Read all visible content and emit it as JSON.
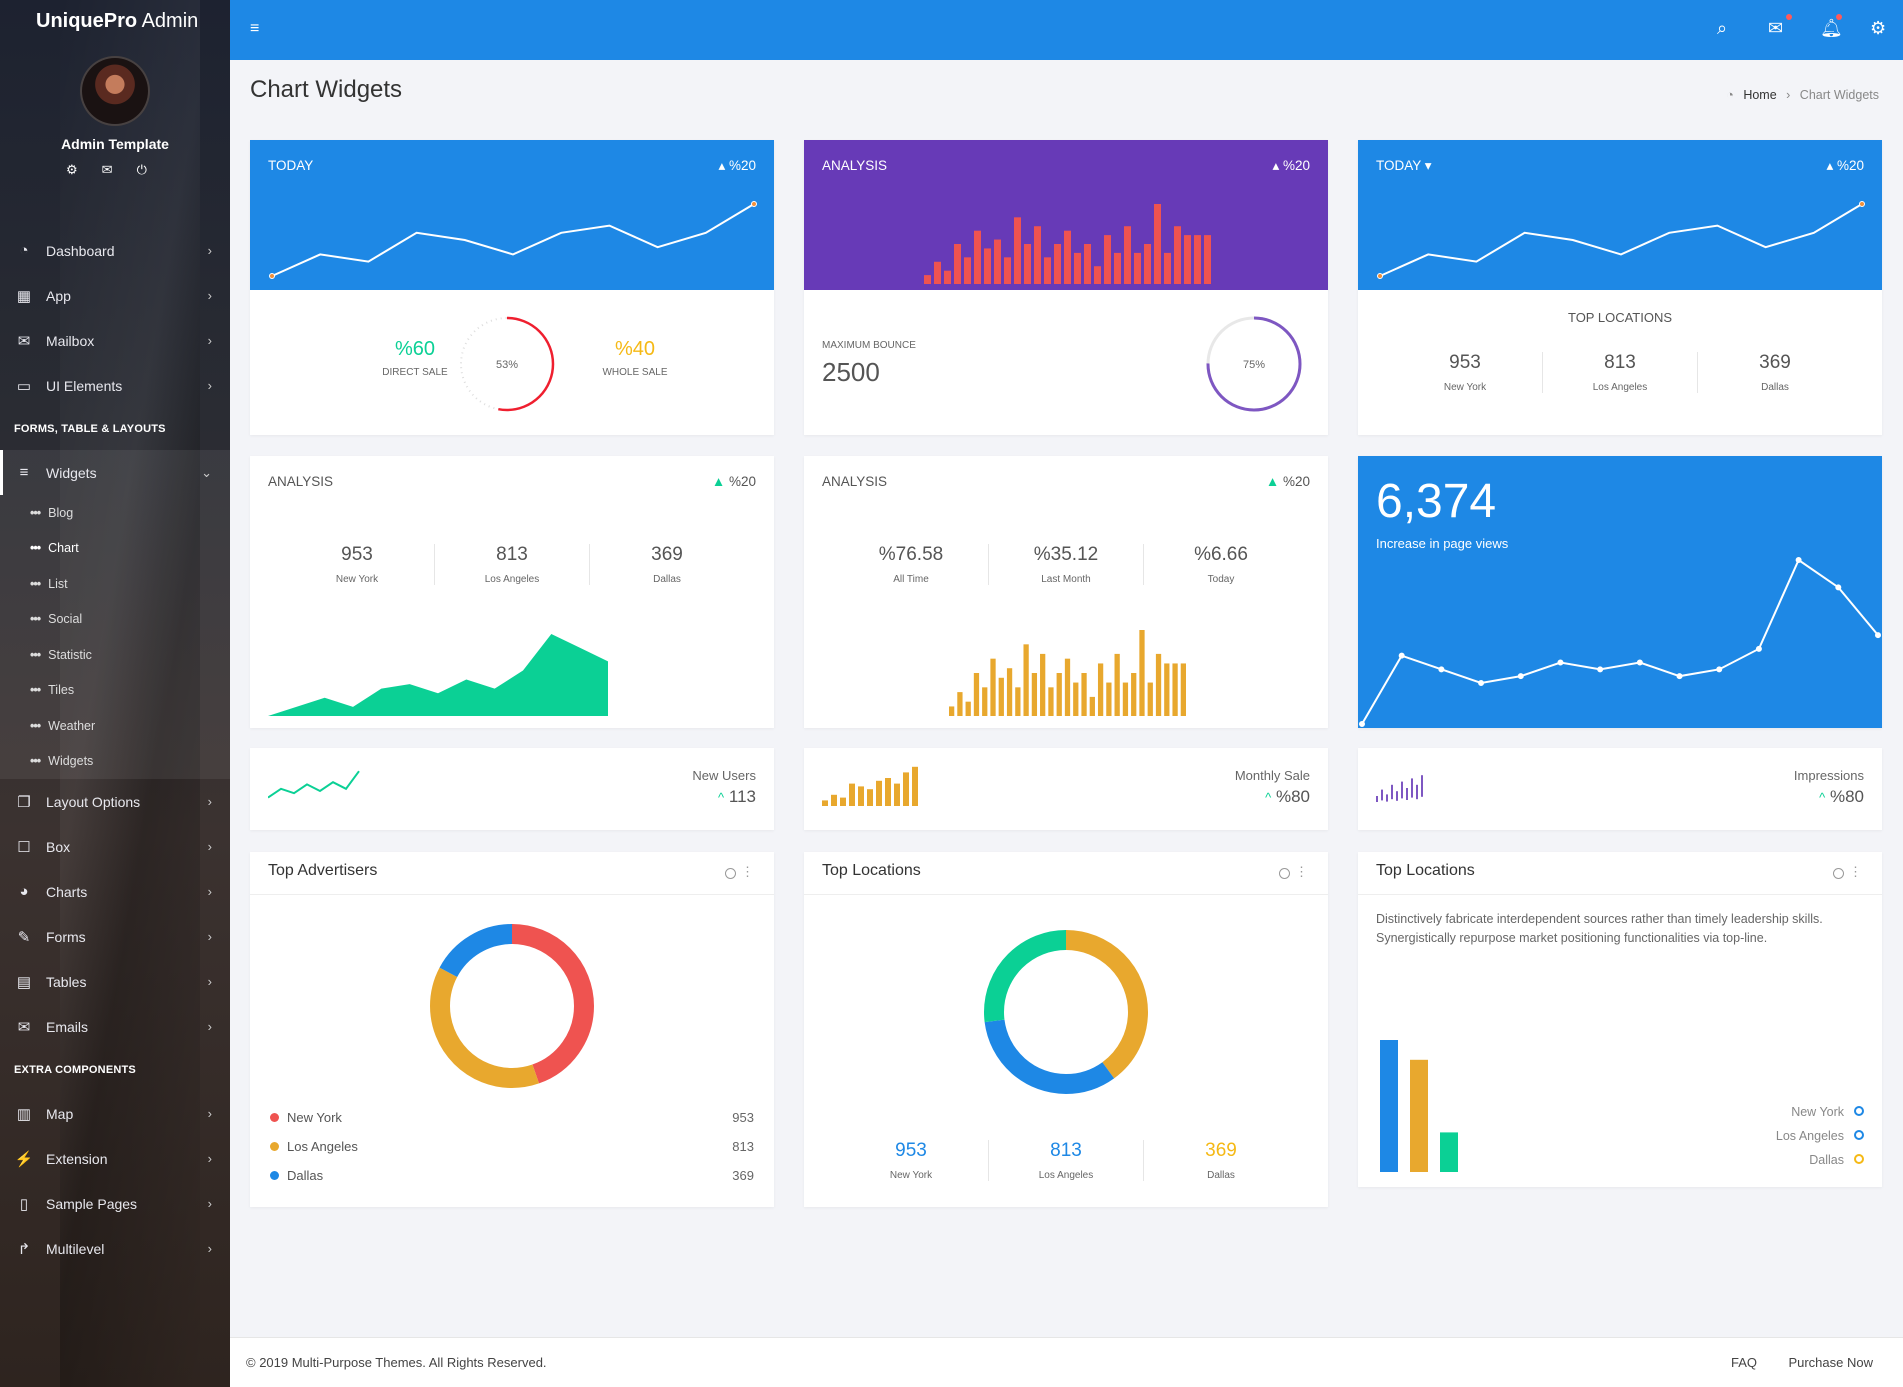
{
  "app": {
    "logo_bold": "UniquePro",
    "logo_light": " Admin",
    "user": "Admin Template"
  },
  "sidebar": {
    "items_top": [
      {
        "label": "Dashboard",
        "icon": "dashboard-icon"
      },
      {
        "label": "App",
        "icon": "grid-icon"
      },
      {
        "label": "Mailbox",
        "icon": "envelope-icon"
      },
      {
        "label": "UI Elements",
        "icon": "laptop-icon"
      }
    ],
    "section1": "FORMS, TABLE & LAYOUTS",
    "widgets": {
      "label": "Widgets",
      "subitems": [
        "Blog",
        "Chart",
        "List",
        "Social",
        "Statistic",
        "Tiles",
        "Weather",
        "Widgets"
      ]
    },
    "items_mid": [
      {
        "label": "Layout Options"
      },
      {
        "label": "Box"
      },
      {
        "label": "Charts"
      },
      {
        "label": "Forms"
      },
      {
        "label": "Tables"
      },
      {
        "label": "Emails"
      }
    ],
    "section2": "EXTRA COMPONENTS",
    "items_bottom": [
      {
        "label": "Map"
      },
      {
        "label": "Extension"
      },
      {
        "label": "Sample Pages"
      },
      {
        "label": "Multilevel"
      }
    ]
  },
  "page": {
    "title": "Chart Widgets",
    "breadcrumb_home": "Home",
    "breadcrumb_current": "Chart Widgets"
  },
  "cards": {
    "c1": {
      "title": "TODAY",
      "pct": "%20",
      "left_value": "%60",
      "left_label": "DIRECT SALE",
      "center": "53%",
      "right_value": "%40",
      "right_label": "WHOLE SALE"
    },
    "c2": {
      "title": "ANALYSIS",
      "pct": "%20",
      "label": "MAXIMUM BOUNCE",
      "value": "2500",
      "ring": "75%"
    },
    "c3": {
      "title": "TODAY",
      "pct": "%20",
      "sub_title": "TOP LOCATIONS",
      "stats": [
        {
          "v": "953",
          "l": "New York"
        },
        {
          "v": "813",
          "l": "Los Angeles"
        },
        {
          "v": "369",
          "l": "Dallas"
        }
      ]
    },
    "c4": {
      "title": "ANALYSIS",
      "pct": "%20",
      "stats": [
        {
          "v": "953",
          "l": "New York"
        },
        {
          "v": "813",
          "l": "Los Angeles"
        },
        {
          "v": "369",
          "l": "Dallas"
        }
      ]
    },
    "c5": {
      "title": "ANALYSIS",
      "pct": "%20",
      "stats": [
        {
          "v": "%76.58",
          "l": "All Time"
        },
        {
          "v": "%35.12",
          "l": "Last Month"
        },
        {
          "v": "%6.66",
          "l": "Today"
        }
      ]
    },
    "c6": {
      "value": "6,374",
      "label": "Increase in page views"
    },
    "m1": {
      "label": "New Users",
      "value": "113"
    },
    "m2": {
      "label": "Monthly Sale",
      "value": "%80"
    },
    "m3": {
      "label": "Impressions",
      "value": "%80"
    },
    "b1": {
      "title": "Top Advertisers",
      "legend": [
        {
          "name": "New York",
          "value": "953"
        },
        {
          "name": "Los Angeles",
          "value": "813"
        },
        {
          "name": "Dallas",
          "value": "369"
        }
      ]
    },
    "b2": {
      "title": "Top Locations",
      "stats": [
        {
          "v": "953",
          "l": "New York"
        },
        {
          "v": "813",
          "l": "Los Angeles"
        },
        {
          "v": "369",
          "l": "Dallas"
        }
      ]
    },
    "b3": {
      "title": "Top Locations",
      "text": "Distinctively fabricate interdependent sources rather than timely leadership skills. Synergistically repurpose market positioning functionalities via top-line.",
      "legend": [
        "New York",
        "Los Angeles",
        "Dallas"
      ]
    }
  },
  "colors": {
    "blue": "#1e88e5",
    "purple": "#673ab7",
    "green": "#0bd095",
    "orange": "#e8a82e",
    "red": "#ef5350",
    "violet": "#7e57c2"
  },
  "footer": {
    "copyright": "© 2019 Multi-Purpose Themes. All Rights Reserved.",
    "faq": "FAQ",
    "purchase": "Purchase Now"
  },
  "chart_data": [
    {
      "type": "line",
      "name": "today-line-1",
      "values": [
        2,
        5,
        4,
        8,
        7,
        5,
        8,
        9,
        6,
        8,
        12
      ]
    },
    {
      "type": "bar",
      "name": "analysis-bars-purple",
      "values": [
        2,
        5,
        3,
        9,
        6,
        12,
        8,
        10,
        6,
        15,
        9,
        13,
        6,
        9,
        12,
        7,
        9,
        4,
        11,
        7,
        13,
        7,
        9,
        18,
        7,
        13,
        11,
        11,
        11
      ]
    },
    {
      "type": "line",
      "name": "today-line-2",
      "values": [
        2,
        5,
        4,
        8,
        7,
        5,
        8,
        9,
        6,
        8,
        12
      ]
    },
    {
      "type": "area",
      "name": "analysis-area",
      "values": [
        0,
        2,
        4,
        2,
        6,
        7,
        5,
        8,
        6,
        10,
        18,
        15,
        12
      ]
    },
    {
      "type": "bar",
      "name": "analysis-bars-orange",
      "values": [
        2,
        5,
        3,
        9,
        6,
        12,
        8,
        10,
        6,
        15,
        9,
        13,
        6,
        9,
        12,
        7,
        9,
        4,
        11,
        7,
        13,
        7,
        9,
        18,
        7,
        13,
        11,
        11,
        11
      ]
    },
    {
      "type": "line",
      "name": "page-views-line",
      "values": [
        0,
        10,
        8,
        6,
        7,
        9,
        8,
        9,
        7,
        8,
        11,
        24,
        20,
        13
      ]
    },
    {
      "type": "pie",
      "name": "top-advertisers-donut",
      "categories": [
        "New York",
        "Los Angeles",
        "Dallas"
      ],
      "values": [
        953,
        813,
        369
      ]
    },
    {
      "type": "pie",
      "name": "top-locations-donut",
      "categories": [
        "Los Angeles",
        "Dallas",
        "New York"
      ],
      "values": [
        40,
        33,
        27
      ]
    },
    {
      "type": "bar",
      "name": "top-locations-bars",
      "categories": [
        "New York",
        "Los Angeles",
        "Dallas"
      ],
      "values": [
        100,
        85,
        30
      ]
    }
  ]
}
